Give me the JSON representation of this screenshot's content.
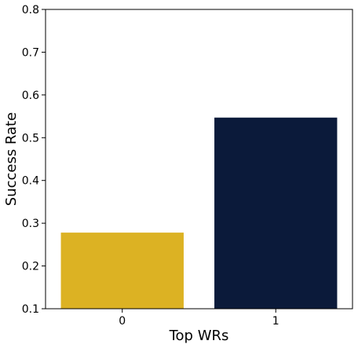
{
  "chart_data": {
    "type": "bar",
    "title": "",
    "xlabel": "Top WRs",
    "ylabel": "Success Rate",
    "categories": [
      "0",
      "1"
    ],
    "values": [
      0.278,
      0.547
    ],
    "colors": [
      "#dcb223",
      "#0b1a3a"
    ],
    "ylim": [
      0.1,
      0.8
    ],
    "yticks": [
      0.1,
      0.2,
      0.3,
      0.4,
      0.5,
      0.6,
      0.7,
      0.8
    ],
    "ytick_labels": [
      "0.1",
      "0.2",
      "0.3",
      "0.4",
      "0.5",
      "0.6",
      "0.7",
      "0.8"
    ],
    "grid": false,
    "legend": "none"
  }
}
